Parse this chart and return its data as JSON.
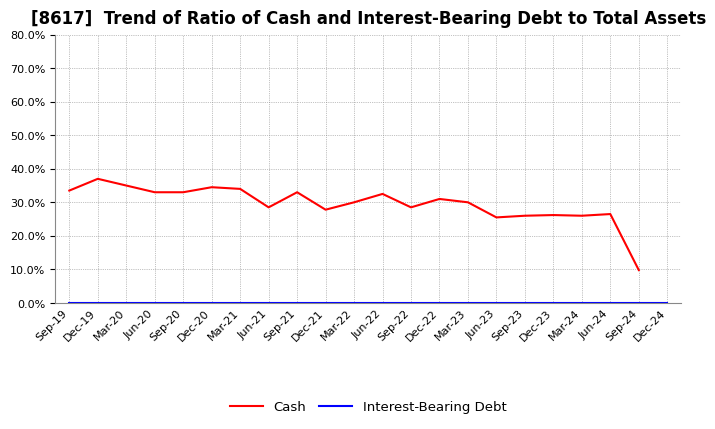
{
  "title": "[8617]  Trend of Ratio of Cash and Interest-Bearing Debt to Total Assets",
  "x_labels": [
    "Sep-19",
    "Dec-19",
    "Mar-20",
    "Jun-20",
    "Sep-20",
    "Dec-20",
    "Mar-21",
    "Jun-21",
    "Sep-21",
    "Dec-21",
    "Mar-22",
    "Jun-22",
    "Sep-22",
    "Dec-22",
    "Mar-23",
    "Jun-23",
    "Sep-23",
    "Dec-23",
    "Mar-24",
    "Jun-24",
    "Sep-24",
    "Dec-24"
  ],
  "cash": [
    0.335,
    0.37,
    0.35,
    0.33,
    0.33,
    0.345,
    0.34,
    0.285,
    0.33,
    0.278,
    0.3,
    0.325,
    0.285,
    0.31,
    0.3,
    0.255,
    0.26,
    0.262,
    0.26,
    0.265,
    0.098,
    null
  ],
  "interest_bearing_debt": [
    0.0,
    0.0,
    0.0,
    0.0,
    0.0,
    0.0,
    0.0,
    0.0,
    0.0,
    0.0,
    0.0,
    0.0,
    0.0,
    0.0,
    0.0,
    0.0,
    0.0,
    0.0,
    0.0,
    0.0,
    0.0,
    0.0
  ],
  "cash_color": "#FF0000",
  "debt_color": "#0000FF",
  "ylim": [
    0.0,
    0.8
  ],
  "yticks": [
    0.0,
    0.1,
    0.2,
    0.3,
    0.4,
    0.5,
    0.6,
    0.7,
    0.8
  ],
  "background_color": "#FFFFFF",
  "plot_bg_color": "#F0F0F0",
  "grid_color": "#888888",
  "title_fontsize": 12,
  "tick_fontsize": 8,
  "legend_labels": [
    "Cash",
    "Interest-Bearing Debt"
  ]
}
